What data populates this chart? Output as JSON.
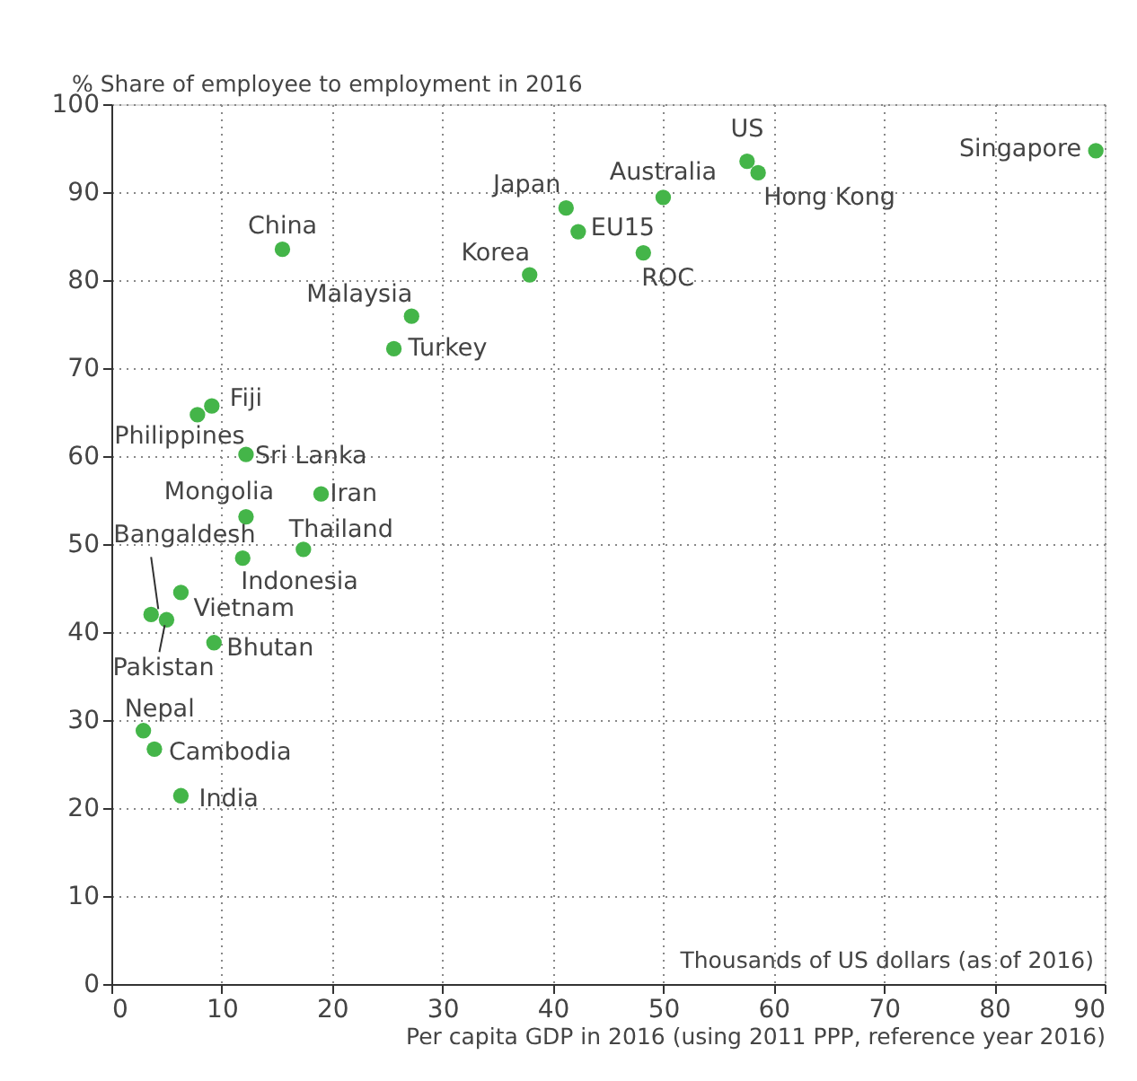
{
  "chart_data": {
    "type": "scatter",
    "xlabel": "Per capita GDP in 2016 (using 2011 PPP, reference year 2016)",
    "ylabel": "%  Share of employee to employment in 2016",
    "x": [
      15.5,
      27.2,
      25.6,
      37.9,
      41.2,
      42.3,
      50.0,
      48.2,
      57.6,
      58.6,
      89.2,
      9.1,
      7.8,
      12.2,
      19.0,
      12.2,
      17.4,
      11.9,
      6.3,
      3.6,
      5.0,
      9.3,
      2.9,
      3.9,
      6.3
    ],
    "series": [
      {
        "color": "#44b549",
        "values": [
          83.5,
          75.9,
          72.2,
          80.6,
          88.2,
          85.5,
          89.4,
          83.1,
          93.5,
          92.2,
          94.7,
          65.7,
          64.7,
          60.2,
          55.7,
          53.1,
          49.4,
          48.4,
          44.5,
          42.0,
          41.4,
          38.8,
          28.8,
          26.7,
          21.4
        ]
      }
    ],
    "annotations": [
      {
        "text": "China",
        "x": 15.5,
        "y": 83.5
      },
      {
        "text": "Malaysia",
        "x": 27.2,
        "y": 75.9
      },
      {
        "text": "Turkey",
        "x": 25.6,
        "y": 72.2
      },
      {
        "text": "Korea",
        "x": 37.9,
        "y": 80.6
      },
      {
        "text": "Japan",
        "x": 41.2,
        "y": 88.2
      },
      {
        "text": "EU15",
        "x": 42.3,
        "y": 85.5
      },
      {
        "text": "Australia",
        "x": 50.0,
        "y": 89.4
      },
      {
        "text": "ROC",
        "x": 48.2,
        "y": 83.1
      },
      {
        "text": "US",
        "x": 57.6,
        "y": 93.5
      },
      {
        "text": "Hong Kong",
        "x": 58.6,
        "y": 92.2
      },
      {
        "text": "Singapore",
        "x": 89.2,
        "y": 94.7
      },
      {
        "text": "Fiji",
        "x": 9.1,
        "y": 65.7
      },
      {
        "text": "Philippines",
        "x": 7.8,
        "y": 64.7
      },
      {
        "text": "Sri Lanka",
        "x": 12.2,
        "y": 60.2
      },
      {
        "text": "Iran",
        "x": 19.0,
        "y": 55.7
      },
      {
        "text": "Mongolia",
        "x": 12.2,
        "y": 53.1
      },
      {
        "text": "Thailand",
        "x": 17.4,
        "y": 49.4
      },
      {
        "text": "Indonesia",
        "x": 11.9,
        "y": 48.4
      },
      {
        "text": "Vietnam",
        "x": 6.3,
        "y": 44.5
      },
      {
        "text": "Bangaldesh",
        "x": 3.6,
        "y": 42.0
      },
      {
        "text": "Pakistan",
        "x": 5.0,
        "y": 41.4
      },
      {
        "text": "Bhutan",
        "x": 9.3,
        "y": 38.8
      },
      {
        "text": "Nepal",
        "x": 2.9,
        "y": 28.8
      },
      {
        "text": "Cambodia",
        "x": 3.9,
        "y": 26.7
      },
      {
        "text": "India",
        "x": 6.3,
        "y": 21.4
      },
      "Thousands of US dollars (as of 2016)"
    ],
    "xlim": [
      0,
      90
    ],
    "xticks": [
      0,
      10,
      20,
      30,
      40,
      50,
      60,
      70,
      80,
      90
    ],
    "ylim": [
      0,
      100
    ],
    "yticks": [
      0,
      10,
      20,
      30,
      40,
      50,
      60,
      70,
      80,
      90,
      100
    ],
    "grid": true,
    "marker": "circle"
  }
}
